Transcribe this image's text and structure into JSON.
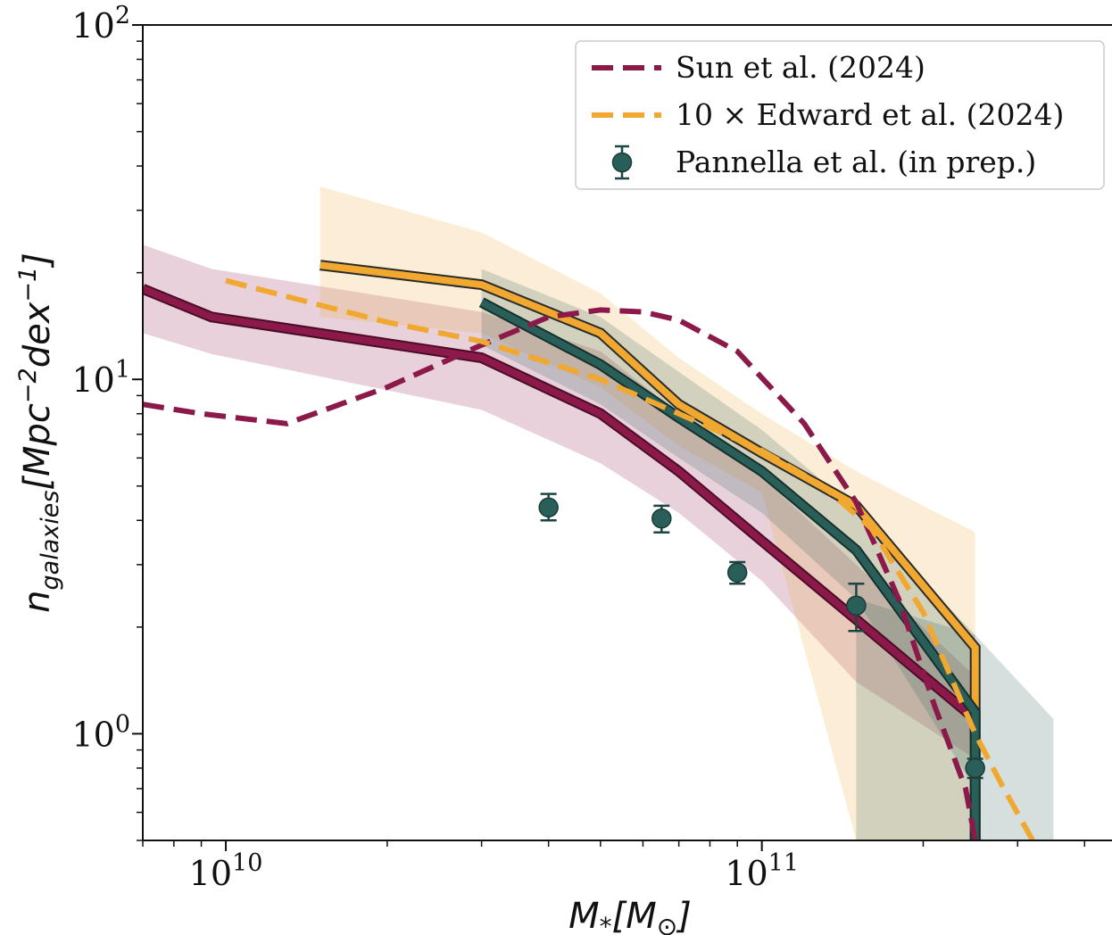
{
  "chart_data": {
    "type": "line",
    "xscale": "log",
    "yscale": "log",
    "xlim": [
      7000000000,
      450000000000
    ],
    "ylim": [
      0.5,
      100
    ],
    "grid": false,
    "legend_position": "top-right",
    "x_ticks": [
      {
        "value": 10000000000,
        "base": "10",
        "exp": "10"
      },
      {
        "value": 100000000000,
        "base": "10",
        "exp": "11"
      }
    ],
    "y_ticks": [
      {
        "value": 1,
        "base": "10",
        "exp": "0"
      },
      {
        "value": 10,
        "base": "10",
        "exp": "1"
      },
      {
        "value": 100,
        "base": "10",
        "exp": "2"
      }
    ],
    "xlabel": {
      "main": "M",
      "sub": "*",
      "rest": "[M",
      "unit_sub": "⊙",
      "close": "]"
    },
    "ylabel": {
      "main": "n",
      "sub": "galaxies",
      "rest": "[Mpc",
      "sup1": "−2",
      "mid": "dex",
      "sup2": "−1",
      "close": "]"
    },
    "colors": {
      "maroon": "#8b1a4a",
      "orange": "#f0a830",
      "teal": "#2a5e58"
    },
    "series": [
      {
        "name": "Sun et al. (2024)",
        "style": "dashed",
        "color": "#8b1a4a",
        "x": [
          7000000000,
          9000000000,
          13000000000,
          20000000000,
          30000000000,
          40000000000,
          50000000000,
          60000000000,
          70000000000,
          90000000000,
          120000000000,
          150000000000,
          180000000000,
          210000000000,
          240000000000,
          250000000000
        ],
        "y": [
          8.5,
          8.0,
          7.5,
          9.5,
          12.5,
          15.0,
          15.7,
          15.5,
          14.7,
          12.0,
          7.5,
          4.5,
          2.4,
          1.2,
          0.7,
          0.5
        ]
      },
      {
        "name": "10 × Edward et al. (2024)",
        "style": "dashed",
        "color": "#f0a830",
        "x": [
          10000000000,
          15000000000,
          20000000000,
          30000000000,
          50000000000,
          70000000000,
          100000000000,
          130000000000,
          160000000000,
          200000000000,
          250000000000,
          280000000000,
          320000000000
        ],
        "y": [
          19.0,
          16.2,
          14.5,
          12.8,
          10.0,
          8.0,
          6.3,
          5.0,
          3.8,
          2.2,
          1.0,
          0.72,
          0.5
        ]
      },
      {
        "name": "",
        "style": "solid",
        "color": "#8b1a4a",
        "x": [
          7000000000,
          9400000000,
          30000000000,
          50000000000,
          70000000000,
          100000000000,
          150000000000,
          250000000000
        ],
        "y": [
          18.0,
          15.0,
          11.5,
          8.0,
          5.5,
          3.5,
          2.1,
          1.1
        ],
        "band_lower": [
          13.5,
          11.8,
          8.2,
          5.8,
          4.2,
          2.7,
          1.4,
          0.85
        ],
        "band_upper": [
          24.0,
          20.5,
          15.5,
          12.0,
          8.0,
          5.3,
          3.0,
          1.45
        ]
      },
      {
        "name": "",
        "style": "solid",
        "color": "#f0a830",
        "x": [
          15000000000,
          30000000000,
          50000000000,
          70000000000,
          100000000000,
          150000000000,
          250000000000,
          250000000000
        ],
        "y": [
          21.0,
          18.5,
          13.5,
          8.5,
          6.2,
          4.4,
          1.75,
          0.5
        ],
        "band_lower": [
          15.0,
          13.5,
          9.5,
          6.5,
          4.8,
          0.5,
          0.5,
          0.5
        ],
        "band_upper": [
          35.0,
          26.0,
          17.5,
          11.5,
          8.0,
          5.5,
          3.7,
          3.7
        ]
      },
      {
        "name": "",
        "style": "solid",
        "color": "#2a5e58",
        "x": [
          30000000000,
          50000000000,
          70000000000,
          100000000000,
          150000000000,
          250000000000,
          250000000000
        ],
        "y": [
          16.5,
          11.0,
          7.8,
          5.5,
          3.3,
          1.15,
          0.5
        ],
        "band_lower": [
          12.5,
          8.5,
          6.0,
          4.2,
          2.4,
          0.7,
          0.5
        ],
        "band_upper": [
          20.5,
          15.0,
          10.5,
          7.2,
          4.3,
          1.9,
          0.5
        ]
      }
    ],
    "extra_bands": [
      {
        "color": "#2a5e58",
        "x": [
          150000000000,
          250000000000,
          350000000000,
          350000000000,
          250000000000,
          150000000000
        ],
        "y": [
          2.4,
          1.9,
          1.1,
          0.5,
          0.5,
          0.5
        ]
      }
    ],
    "points": {
      "name": "Pannella et al. (in prep.)",
      "color": "#2a5e58",
      "x": [
        40000000000,
        65000000000,
        90000000000,
        150000000000,
        250000000000
      ],
      "y": [
        4.35,
        4.05,
        2.85,
        2.3,
        0.8
      ],
      "err_low": [
        0.35,
        0.35,
        0.2,
        0.35,
        0.05
      ],
      "err_high": [
        0.4,
        0.35,
        0.2,
        0.35,
        0.05
      ]
    }
  }
}
